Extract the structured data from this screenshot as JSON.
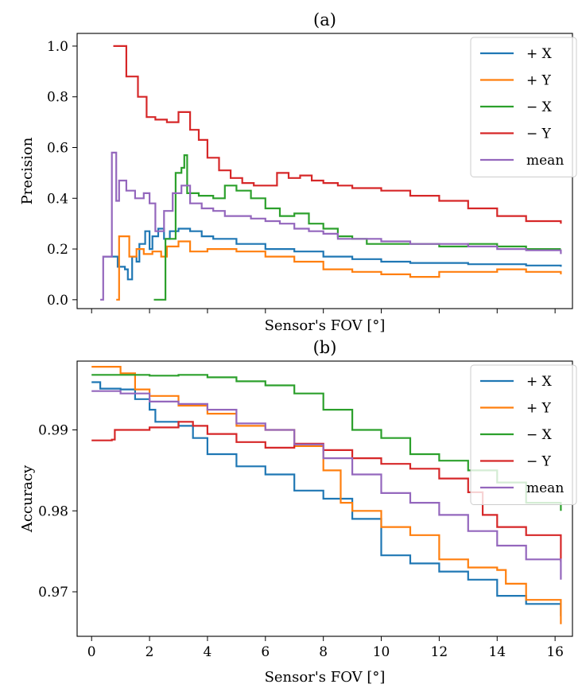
{
  "chart_data": [
    {
      "type": "line",
      "title": "(a)",
      "xlabel": "Sensor's FOV [°]",
      "ylabel": "Precision",
      "xlim": [
        -0.5,
        16.6
      ],
      "ylim": [
        -0.035,
        1.05
      ],
      "xticks": [
        0,
        2,
        4,
        6,
        8,
        10,
        12,
        14,
        16
      ],
      "xtick_labels_visible": false,
      "yticks": [
        0.0,
        0.2,
        0.4,
        0.6,
        0.8,
        1.0
      ],
      "ytick_labels": [
        "0.0",
        "0.2",
        "0.4",
        "0.6",
        "0.8",
        "1.0"
      ],
      "grid": false,
      "legend_position": "top-right",
      "series": [
        {
          "name": "+ X",
          "color": "#1f77b4",
          "points": [
            [
              0.4,
              0.17
            ],
            [
              0.9,
              0.17
            ],
            [
              0.9,
              0.13
            ],
            [
              1.15,
              0.12
            ],
            [
              1.25,
              0.08
            ],
            [
              1.4,
              0.17
            ],
            [
              1.55,
              0.15
            ],
            [
              1.65,
              0.22
            ],
            [
              1.85,
              0.27
            ],
            [
              2.0,
              0.2
            ],
            [
              2.1,
              0.25
            ],
            [
              2.3,
              0.28
            ],
            [
              2.5,
              0.24
            ],
            [
              2.7,
              0.27
            ],
            [
              3.0,
              0.28
            ],
            [
              3.4,
              0.27
            ],
            [
              3.8,
              0.25
            ],
            [
              4.2,
              0.24
            ],
            [
              5.0,
              0.22
            ],
            [
              6.0,
              0.2
            ],
            [
              7.0,
              0.19
            ],
            [
              8.0,
              0.17
            ],
            [
              9.0,
              0.16
            ],
            [
              10.0,
              0.15
            ],
            [
              11.0,
              0.145
            ],
            [
              12.0,
              0.145
            ],
            [
              13.0,
              0.14
            ],
            [
              14.0,
              0.14
            ],
            [
              15.0,
              0.135
            ],
            [
              16.2,
              0.13
            ]
          ]
        },
        {
          "name": "+ Y",
          "color": "#ff7f0e",
          "points": [
            [
              0.85,
              0.0
            ],
            [
              0.95,
              0.25
            ],
            [
              1.3,
              0.17
            ],
            [
              1.55,
              0.2
            ],
            [
              1.8,
              0.18
            ],
            [
              2.1,
              0.19
            ],
            [
              2.4,
              0.17
            ],
            [
              2.6,
              0.21
            ],
            [
              3.0,
              0.23
            ],
            [
              3.4,
              0.19
            ],
            [
              4.0,
              0.2
            ],
            [
              5.0,
              0.19
            ],
            [
              6.0,
              0.17
            ],
            [
              7.0,
              0.15
            ],
            [
              8.0,
              0.12
            ],
            [
              9.0,
              0.11
            ],
            [
              10.0,
              0.1
            ],
            [
              11.0,
              0.09
            ],
            [
              12.0,
              0.11
            ],
            [
              13.0,
              0.11
            ],
            [
              14.0,
              0.12
            ],
            [
              15.0,
              0.11
            ],
            [
              16.2,
              0.1
            ]
          ]
        },
        {
          "name": "− X",
          "color": "#2ca02c",
          "points": [
            [
              2.15,
              0.0
            ],
            [
              2.55,
              0.0
            ],
            [
              2.55,
              0.24
            ],
            [
              2.9,
              0.5
            ],
            [
              3.1,
              0.52
            ],
            [
              3.2,
              0.57
            ],
            [
              3.3,
              0.42
            ],
            [
              3.7,
              0.41
            ],
            [
              4.2,
              0.4
            ],
            [
              4.6,
              0.45
            ],
            [
              5.0,
              0.43
            ],
            [
              5.5,
              0.4
            ],
            [
              6.0,
              0.36
            ],
            [
              6.5,
              0.33
            ],
            [
              7.0,
              0.34
            ],
            [
              7.5,
              0.3
            ],
            [
              8.0,
              0.28
            ],
            [
              8.5,
              0.25
            ],
            [
              9.0,
              0.24
            ],
            [
              9.5,
              0.22
            ],
            [
              10.0,
              0.22
            ],
            [
              11.0,
              0.22
            ],
            [
              12.0,
              0.21
            ],
            [
              13.0,
              0.22
            ],
            [
              14.0,
              0.21
            ],
            [
              15.0,
              0.2
            ],
            [
              16.2,
              0.2
            ]
          ]
        },
        {
          "name": "− Y",
          "color": "#d62728",
          "points": [
            [
              0.75,
              1.0
            ],
            [
              1.2,
              1.0
            ],
            [
              1.2,
              0.88
            ],
            [
              1.6,
              0.8
            ],
            [
              1.9,
              0.72
            ],
            [
              2.2,
              0.71
            ],
            [
              2.6,
              0.7
            ],
            [
              3.0,
              0.74
            ],
            [
              3.4,
              0.67
            ],
            [
              3.7,
              0.63
            ],
            [
              4.0,
              0.56
            ],
            [
              4.4,
              0.51
            ],
            [
              4.8,
              0.48
            ],
            [
              5.2,
              0.46
            ],
            [
              5.6,
              0.45
            ],
            [
              6.0,
              0.45
            ],
            [
              6.4,
              0.5
            ],
            [
              6.8,
              0.48
            ],
            [
              7.2,
              0.49
            ],
            [
              7.6,
              0.47
            ],
            [
              8.0,
              0.46
            ],
            [
              8.5,
              0.45
            ],
            [
              9.0,
              0.44
            ],
            [
              10.0,
              0.43
            ],
            [
              11.0,
              0.41
            ],
            [
              12.0,
              0.39
            ],
            [
              13.0,
              0.36
            ],
            [
              14.0,
              0.33
            ],
            [
              15.0,
              0.31
            ],
            [
              16.2,
              0.3
            ]
          ]
        },
        {
          "name": "mean",
          "color": "#9467bd",
          "points": [
            [
              0.3,
              0.0
            ],
            [
              0.4,
              0.17
            ],
            [
              0.65,
              0.17
            ],
            [
              0.7,
              0.58
            ],
            [
              0.85,
              0.39
            ],
            [
              0.95,
              0.47
            ],
            [
              1.2,
              0.43
            ],
            [
              1.5,
              0.4
            ],
            [
              1.8,
              0.42
            ],
            [
              2.0,
              0.38
            ],
            [
              2.2,
              0.27
            ],
            [
              2.5,
              0.35
            ],
            [
              2.8,
              0.42
            ],
            [
              3.1,
              0.45
            ],
            [
              3.4,
              0.38
            ],
            [
              3.8,
              0.36
            ],
            [
              4.2,
              0.35
            ],
            [
              4.6,
              0.33
            ],
            [
              5.0,
              0.33
            ],
            [
              5.5,
              0.32
            ],
            [
              6.0,
              0.31
            ],
            [
              6.5,
              0.3
            ],
            [
              7.0,
              0.28
            ],
            [
              7.5,
              0.27
            ],
            [
              8.0,
              0.26
            ],
            [
              8.5,
              0.24
            ],
            [
              9.0,
              0.24
            ],
            [
              10.0,
              0.23
            ],
            [
              11.0,
              0.22
            ],
            [
              12.0,
              0.22
            ],
            [
              13.0,
              0.21
            ],
            [
              14.0,
              0.2
            ],
            [
              15.0,
              0.195
            ],
            [
              16.2,
              0.18
            ]
          ]
        }
      ]
    },
    {
      "type": "line",
      "title": "(b)",
      "xlabel": "Sensor's FOV [°]",
      "ylabel": "Accuracy",
      "xlim": [
        -0.5,
        16.6
      ],
      "ylim": [
        0.9645,
        0.9985
      ],
      "xticks": [
        0,
        2,
        4,
        6,
        8,
        10,
        12,
        14,
        16
      ],
      "xtick_labels": [
        "0",
        "2",
        "4",
        "6",
        "8",
        "10",
        "12",
        "14",
        "16"
      ],
      "yticks": [
        0.97,
        0.98,
        0.99
      ],
      "ytick_labels": [
        "0.97",
        "0.98",
        "0.99"
      ],
      "grid": false,
      "legend_position": "top-right",
      "series": [
        {
          "name": "+ X",
          "color": "#1f77b4",
          "points": [
            [
              0.0,
              0.9959
            ],
            [
              0.3,
              0.9951
            ],
            [
              1.0,
              0.995
            ],
            [
              1.5,
              0.9938
            ],
            [
              2.0,
              0.9925
            ],
            [
              2.2,
              0.991
            ],
            [
              3.0,
              0.9905
            ],
            [
              3.5,
              0.989
            ],
            [
              4.0,
              0.987
            ],
            [
              5.0,
              0.9855
            ],
            [
              6.0,
              0.9845
            ],
            [
              7.0,
              0.9825
            ],
            [
              8.0,
              0.9815
            ],
            [
              9.0,
              0.979
            ],
            [
              10.0,
              0.9745
            ],
            [
              11.0,
              0.9735
            ],
            [
              12.0,
              0.9725
            ],
            [
              13.0,
              0.9715
            ],
            [
              14.0,
              0.9695
            ],
            [
              15.0,
              0.9685
            ],
            [
              16.2,
              0.967
            ]
          ]
        },
        {
          "name": "+ Y",
          "color": "#ff7f0e",
          "points": [
            [
              0.0,
              0.9978
            ],
            [
              0.4,
              0.9978
            ],
            [
              1.0,
              0.997
            ],
            [
              1.5,
              0.995
            ],
            [
              2.0,
              0.9942
            ],
            [
              3.0,
              0.993
            ],
            [
              4.0,
              0.992
            ],
            [
              5.0,
              0.9905
            ],
            [
              6.0,
              0.99
            ],
            [
              7.0,
              0.988
            ],
            [
              8.0,
              0.985
            ],
            [
              8.6,
              0.981
            ],
            [
              9.0,
              0.98
            ],
            [
              10.0,
              0.978
            ],
            [
              11.0,
              0.977
            ],
            [
              12.0,
              0.974
            ],
            [
              13.0,
              0.973
            ],
            [
              14.0,
              0.9727
            ],
            [
              14.3,
              0.971
            ],
            [
              15.0,
              0.969
            ],
            [
              16.2,
              0.966
            ]
          ]
        },
        {
          "name": "− X",
          "color": "#2ca02c",
          "points": [
            [
              0.0,
              0.9968
            ],
            [
              1.0,
              0.9968
            ],
            [
              2.0,
              0.9967
            ],
            [
              3.0,
              0.9968
            ],
            [
              4.0,
              0.9965
            ],
            [
              5.0,
              0.996
            ],
            [
              6.0,
              0.9955
            ],
            [
              7.0,
              0.9945
            ],
            [
              8.0,
              0.9925
            ],
            [
              9.0,
              0.99
            ],
            [
              10.0,
              0.989
            ],
            [
              11.0,
              0.987
            ],
            [
              12.0,
              0.9862
            ],
            [
              13.0,
              0.985
            ],
            [
              14.0,
              0.9835
            ],
            [
              15.0,
              0.981
            ],
            [
              16.2,
              0.98
            ]
          ]
        },
        {
          "name": "− Y",
          "color": "#d62728",
          "points": [
            [
              0.0,
              0.9887
            ],
            [
              0.7,
              0.9888
            ],
            [
              0.8,
              0.99
            ],
            [
              2.0,
              0.9903
            ],
            [
              3.0,
              0.991
            ],
            [
              3.5,
              0.9905
            ],
            [
              4.0,
              0.9895
            ],
            [
              5.0,
              0.9885
            ],
            [
              6.0,
              0.9878
            ],
            [
              7.0,
              0.9883
            ],
            [
              8.0,
              0.9875
            ],
            [
              9.0,
              0.9865
            ],
            [
              10.0,
              0.9858
            ],
            [
              11.0,
              0.9852
            ],
            [
              12.0,
              0.984
            ],
            [
              13.0,
              0.9823
            ],
            [
              13.5,
              0.9795
            ],
            [
              14.0,
              0.978
            ],
            [
              15.0,
              0.977
            ],
            [
              16.2,
              0.9737
            ]
          ]
        },
        {
          "name": "mean",
          "color": "#9467bd",
          "points": [
            [
              0.0,
              0.9948
            ],
            [
              0.5,
              0.9948
            ],
            [
              1.0,
              0.9945
            ],
            [
              2.0,
              0.9935
            ],
            [
              3.0,
              0.9932
            ],
            [
              4.0,
              0.9925
            ],
            [
              5.0,
              0.9908
            ],
            [
              6.0,
              0.99
            ],
            [
              7.0,
              0.9882
            ],
            [
              8.0,
              0.9865
            ],
            [
              9.0,
              0.9845
            ],
            [
              10.0,
              0.9822
            ],
            [
              11.0,
              0.981
            ],
            [
              12.0,
              0.9795
            ],
            [
              13.0,
              0.9775
            ],
            [
              14.0,
              0.9757
            ],
            [
              15.0,
              0.974
            ],
            [
              16.2,
              0.9715
            ]
          ]
        }
      ]
    }
  ]
}
